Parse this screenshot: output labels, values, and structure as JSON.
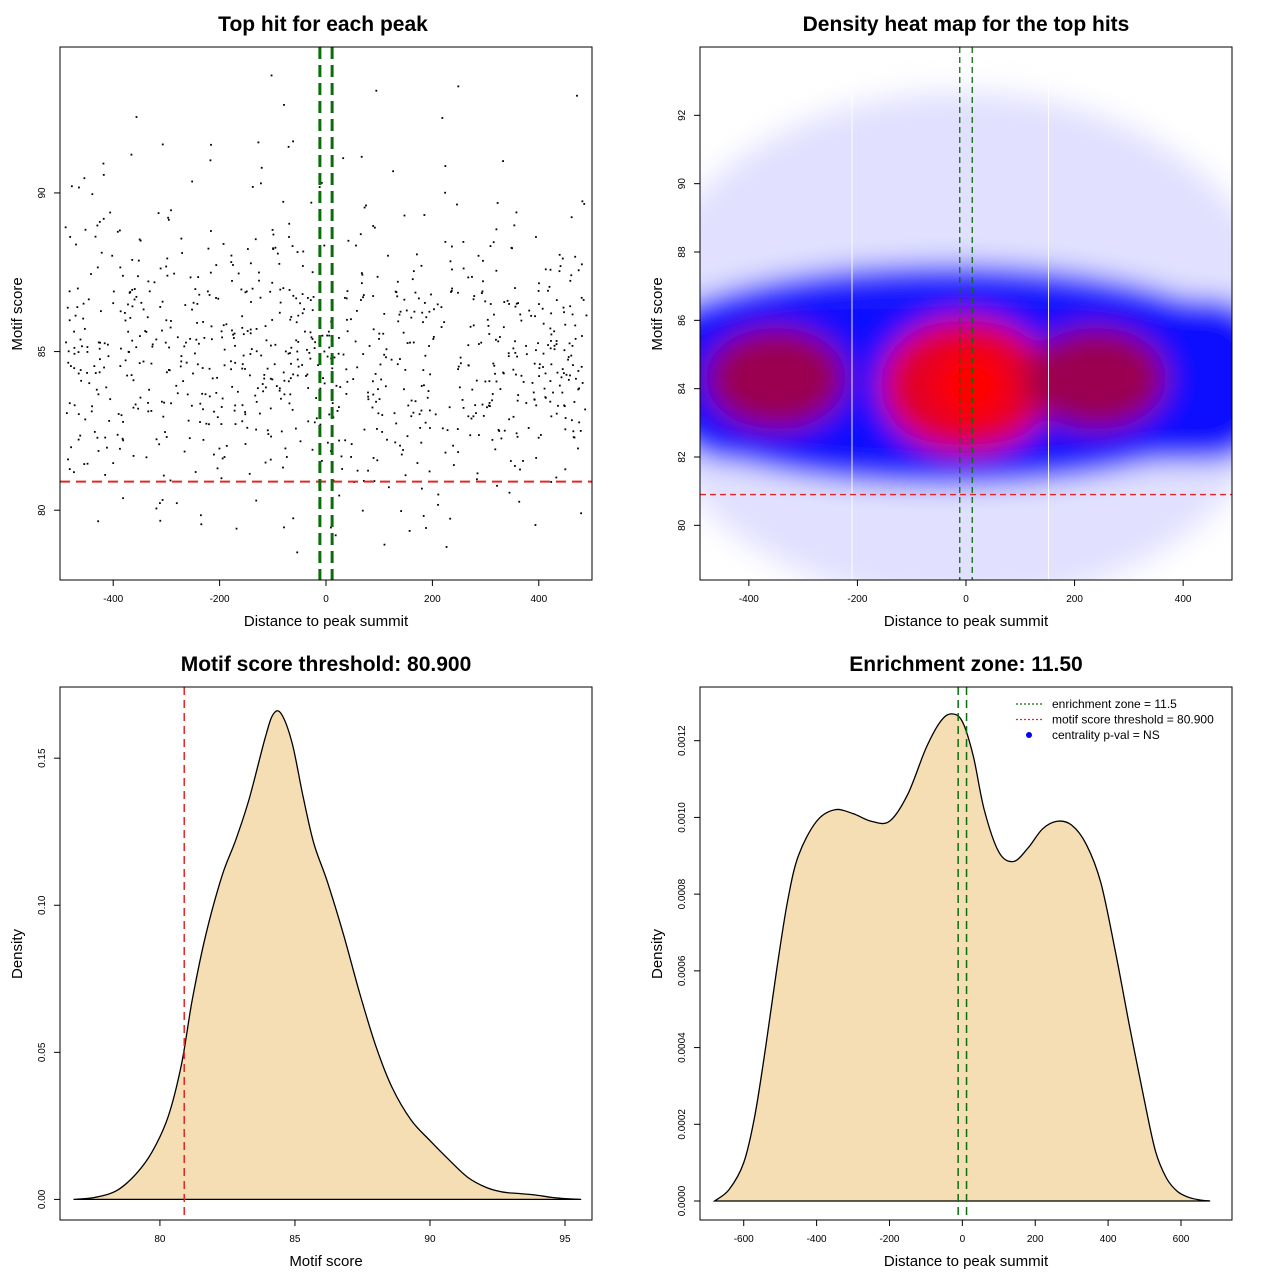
{
  "chart_data": [
    {
      "type": "scatter",
      "title": "Top hit for each peak",
      "xlabel": "Distance to peak summit",
      "ylabel": "Motif score",
      "xlim": [
        -500,
        500
      ],
      "ylim": [
        77.8,
        94.6
      ],
      "xticks": [
        -400,
        -200,
        0,
        200,
        400
      ],
      "yticks": [
        80,
        85,
        90
      ],
      "threshold_y": 80.9,
      "zone_x": [
        -11.5,
        11.5
      ],
      "points_note": "≈900 points spread over x in [-490,490], y mostly in [80,90]",
      "point_count": 900,
      "colors": {
        "points": "#000000",
        "threshold": "#e32626",
        "zone": "#0a6e0a"
      }
    },
    {
      "type": "heatmap",
      "title": "Density heat map for the top hits",
      "xlabel": "Distance to peak summit",
      "ylabel": "Motif score",
      "xlim": [
        -490,
        490
      ],
      "ylim": [
        78.4,
        94.0
      ],
      "xticks": [
        -400,
        -200,
        0,
        200,
        400
      ],
      "yticks": [
        80,
        82,
        84,
        86,
        88,
        90,
        92
      ],
      "threshold_y": 80.9,
      "zone_x": [
        -11.5,
        11.5
      ],
      "hotspots": [
        {
          "x": -350,
          "y": 84.3,
          "intensity": 0.55
        },
        {
          "x": 0,
          "y": 84.1,
          "intensity": 1.0
        },
        {
          "x": 240,
          "y": 84.3,
          "intensity": 0.55
        }
      ],
      "colors": {
        "low": "#ffffff",
        "mid": "#0000ff",
        "high": "#ff0000",
        "threshold": "#e32626",
        "zone": "#0a6e0a"
      }
    },
    {
      "type": "area",
      "title": "Motif score threshold: 80.900",
      "xlabel": "Motif score",
      "ylabel": "Density",
      "xlim": [
        76.3,
        96.0
      ],
      "ylim": [
        -0.007,
        0.1742
      ],
      "xticks": [
        80,
        85,
        90,
        95
      ],
      "yticks": [
        0.0,
        0.05,
        0.1,
        0.15
      ],
      "ytick_labels": [
        "0.00",
        "0.05",
        "0.10",
        "0.15"
      ],
      "threshold_x": 80.9,
      "x": [
        76.8,
        77.6,
        78.4,
        79.1,
        79.7,
        80.3,
        80.8,
        81.2,
        81.7,
        82.3,
        82.8,
        83.3,
        83.9,
        84.2,
        84.5,
        84.9,
        85.3,
        85.7,
        86.2,
        86.8,
        87.4,
        88.0,
        88.6,
        89.3,
        90.0,
        90.7,
        91.4,
        92.1,
        92.7,
        93.3,
        93.9,
        94.5,
        95.1,
        95.6
      ],
      "y": [
        0.0,
        0.0007,
        0.003,
        0.0085,
        0.016,
        0.028,
        0.046,
        0.068,
        0.09,
        0.11,
        0.122,
        0.136,
        0.157,
        0.165,
        0.165,
        0.155,
        0.137,
        0.121,
        0.108,
        0.09,
        0.07,
        0.052,
        0.038,
        0.027,
        0.02,
        0.0135,
        0.0075,
        0.004,
        0.0025,
        0.002,
        0.0015,
        0.0007,
        0.0002,
        0.0
      ],
      "colors": {
        "fill": "#f5deb3",
        "line": "#000000",
        "threshold": "#e32626"
      }
    },
    {
      "type": "area",
      "title": "Enrichment zone: 11.50",
      "xlabel": "Distance to peak summit",
      "ylabel": "Density",
      "xlim": [
        -720,
        740
      ],
      "ylim": [
        -4.95e-05,
        0.00134
      ],
      "xticks": [
        -600,
        -400,
        -200,
        0,
        200,
        400,
        600
      ],
      "yticks": [
        0.0,
        0.0002,
        0.0004,
        0.0006,
        0.0008,
        0.001,
        0.0012
      ],
      "ytick_labels": [
        "0.0000",
        "0.0002",
        "0.0004",
        "0.0006",
        "0.0008",
        "0.0010",
        "0.0012"
      ],
      "zone_x": [
        -11.5,
        11.5
      ],
      "x": [
        -680,
        -640,
        -600,
        -570,
        -540,
        -510,
        -480,
        -450,
        -400,
        -350,
        -300,
        -250,
        -200,
        -150,
        -100,
        -60,
        -30,
        0,
        30,
        60,
        100,
        140,
        180,
        220,
        260,
        300,
        340,
        380,
        420,
        460,
        500,
        530,
        560,
        590,
        620,
        650,
        680
      ],
      "y": [
        0.0,
        3e-05,
        0.0001,
        0.00022,
        0.0004,
        0.0006,
        0.00078,
        0.0009,
        0.00099,
        0.00102,
        0.00101,
        0.00099,
        0.00099,
        0.00106,
        0.00118,
        0.00125,
        0.00127,
        0.00125,
        0.00116,
        0.00102,
        0.00091,
        0.000885,
        0.00092,
        0.00097,
        0.00099,
        0.00098,
        0.00093,
        0.00083,
        0.00065,
        0.00045,
        0.00026,
        0.00013,
        6e-05,
        2.5e-05,
        1e-05,
        3e-06,
        0.0
      ],
      "legend": {
        "position": "top-right",
        "entries": [
          {
            "label": "enrichment zone = 11.5",
            "color": "#0a6e0a",
            "kind": "dotted-line"
          },
          {
            "label": "motif score threshold = 80.900",
            "color": "#e32626",
            "kind": "dotted-line"
          },
          {
            "label": "centrality p-val = NS",
            "color": "#0000ff",
            "kind": "point"
          }
        ]
      },
      "colors": {
        "fill": "#f5deb3",
        "line": "#000000",
        "zone": "#0a6e0a"
      }
    }
  ]
}
